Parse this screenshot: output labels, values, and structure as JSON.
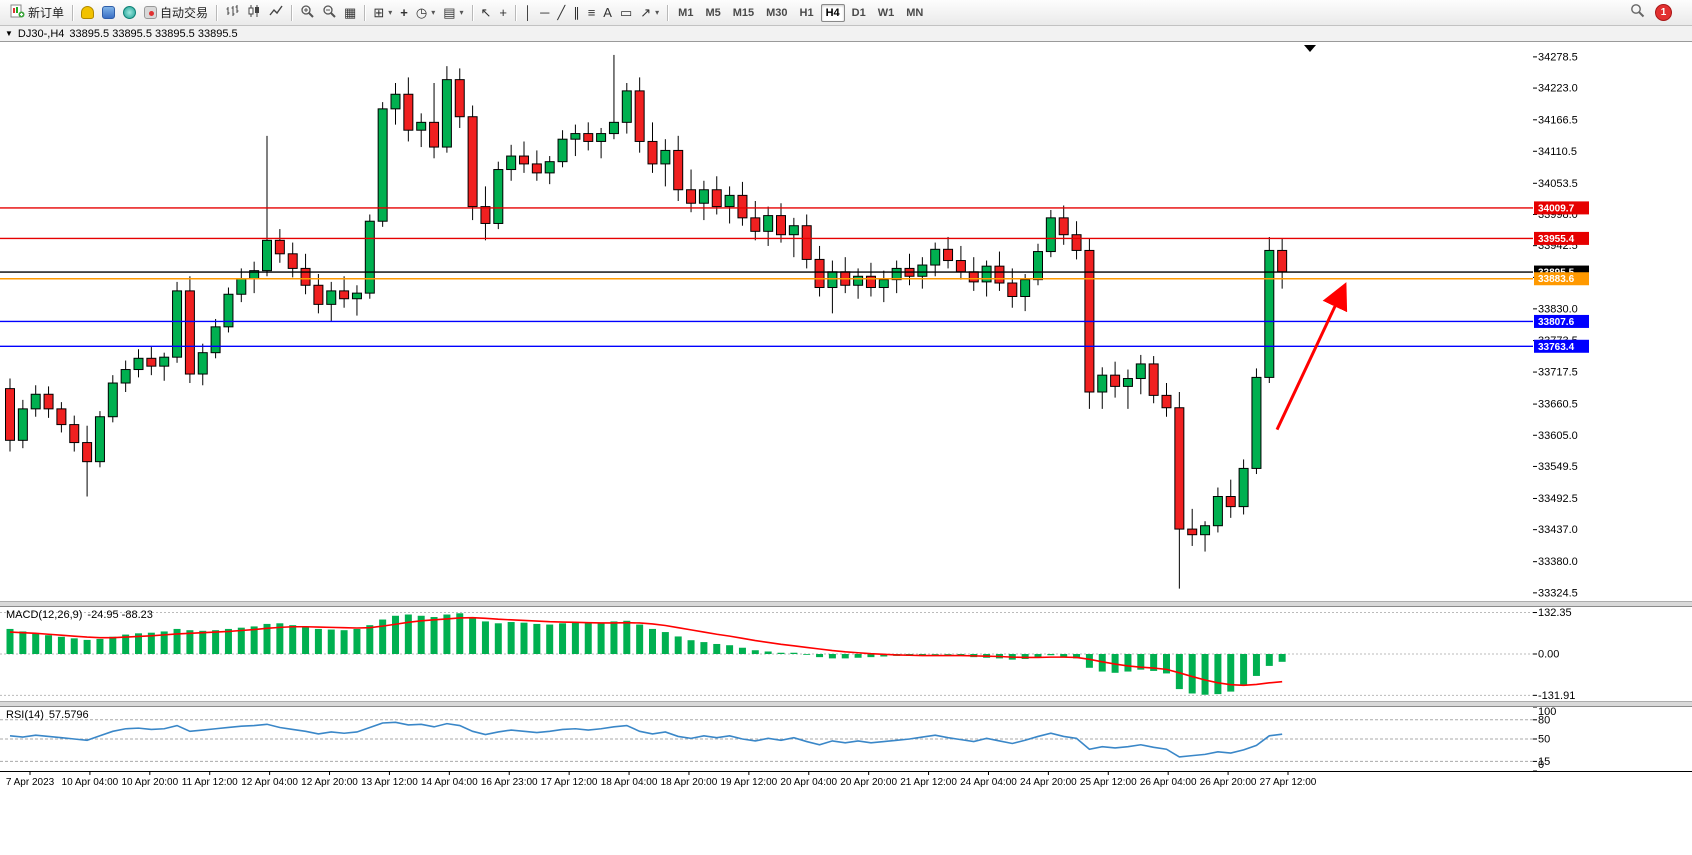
{
  "toolbar": {
    "notification_count": "1",
    "caret_glyph": "▾",
    "timeframes": [
      "M1",
      "M5",
      "M15",
      "M30",
      "H1",
      "H4",
      "D1",
      "W1",
      "MN"
    ],
    "active_timeframe": "H4",
    "items": [
      {
        "type": "button",
        "name": "new-order-button",
        "icon": "new-order-icon",
        "icon_kind": "svg-neworder",
        "label": "新订单"
      },
      {
        "type": "separator"
      },
      {
        "type": "button",
        "name": "metaeditor-button",
        "icon": "metaeditor-icon",
        "icon_kind": "css-hat"
      },
      {
        "type": "button",
        "name": "market-button",
        "icon": "market-icon",
        "icon_kind": "css-blue"
      },
      {
        "type": "button",
        "name": "signals-button",
        "icon": "signals-icon",
        "icon_kind": "css-teal"
      },
      {
        "type": "button",
        "name": "autotrading-button",
        "icon": "autotrading-icon",
        "icon_kind": "css-robot",
        "label": "自动交易"
      },
      {
        "type": "separator"
      },
      {
        "type": "button",
        "name": "bars-chart-button",
        "icon": "bars-chart-icon",
        "icon_kind": "svg-bars"
      },
      {
        "type": "button",
        "name": "candles-chart-button",
        "icon": "candlestick-chart-icon",
        "icon_kind": "svg-candles"
      },
      {
        "type": "button",
        "name": "line-chart-button",
        "icon": "line-chart-icon",
        "icon_kind": "svg-line"
      },
      {
        "type": "separator"
      },
      {
        "type": "button",
        "name": "zoom-in-button",
        "icon": "zoom-in-icon",
        "icon_kind": "svg-zoomin"
      },
      {
        "type": "button",
        "name": "zoom-out-button",
        "icon": "zoom-out-icon",
        "icon_kind": "svg-zoomout"
      },
      {
        "type": "button",
        "name": "tile-windows-button",
        "icon": "tile-windows-icon",
        "icon_kind": "glyph",
        "glyph": "▦"
      },
      {
        "type": "separator"
      },
      {
        "type": "button",
        "name": "new-chart-button",
        "icon": "new-chart-icon",
        "icon_kind": "glyph",
        "glyph": "⊞",
        "caret": true
      },
      {
        "type": "button",
        "name": "indicators-button",
        "icon": "add-indicator-icon",
        "icon_kind": "glyph-green",
        "glyph": "+"
      },
      {
        "type": "button",
        "name": "periods-button",
        "icon": "clock-icon",
        "icon_kind": "glyph",
        "glyph": "◷",
        "caret": true
      },
      {
        "type": "button",
        "name": "templates-button",
        "icon": "template-icon",
        "icon_kind": "glyph",
        "glyph": "▤",
        "caret": true
      },
      {
        "type": "separator"
      },
      {
        "type": "button",
        "name": "cursor-button",
        "icon": "cursor-icon",
        "icon_kind": "glyph",
        "glyph": "↖"
      },
      {
        "type": "button",
        "name": "crosshair-button",
        "icon": "crosshair-icon",
        "icon_kind": "glyph",
        "glyph": "+"
      },
      {
        "type": "separator"
      },
      {
        "type": "button",
        "name": "vline-button",
        "icon": "vertical-line-icon",
        "icon_kind": "glyph",
        "glyph": "│"
      },
      {
        "type": "button",
        "name": "hline-button",
        "icon": "horizontal-line-icon",
        "icon_kind": "glyph",
        "glyph": "─"
      },
      {
        "type": "button",
        "name": "trendline-button",
        "icon": "trendline-icon",
        "icon_kind": "glyph",
        "glyph": "╱"
      },
      {
        "type": "button",
        "name": "channel-button",
        "icon": "channel-icon",
        "icon_kind": "glyph",
        "glyph": "∥"
      },
      {
        "type": "button",
        "name": "fibonacci-button",
        "icon": "fibonacci-icon",
        "icon_kind": "glyph",
        "glyph": "≡"
      },
      {
        "type": "button",
        "name": "text-button",
        "icon": "text-icon",
        "icon_kind": "glyph",
        "glyph": "A"
      },
      {
        "type": "button",
        "name": "label-button",
        "icon": "text-label-icon",
        "icon_kind": "glyph",
        "glyph": "▭"
      },
      {
        "type": "button",
        "name": "arrows-button",
        "icon": "arrows-icon",
        "icon_kind": "glyph",
        "glyph": "↗",
        "caret": true
      },
      {
        "type": "separator"
      }
    ]
  },
  "chart_header": {
    "collapse_glyph": "▼",
    "symbol": "DJ30-,H4",
    "ohlc_text": "33895.5 33895.5 33895.5 33895.5"
  },
  "chart_data": {
    "type": "candlestick",
    "symbol": "DJ30-",
    "timeframe": "H4",
    "current_price": 33895.5,
    "price_axis": {
      "min": 33310,
      "max": 34305,
      "labels": [
        "34278.5",
        "34223.0",
        "34166.5",
        "34110.5",
        "34053.5",
        "33998.0",
        "33942.5",
        "33886.0",
        "33830.0",
        "33773.5",
        "33717.5",
        "33660.5",
        "33605.0",
        "33549.5",
        "33492.5",
        "33437.0",
        "33380.0",
        "33324.5"
      ]
    },
    "hlines": [
      {
        "price": 34009.7,
        "color": "#e60000",
        "label": "34009.7"
      },
      {
        "price": 33955.4,
        "color": "#e60000",
        "label": "33955.4"
      },
      {
        "price": 33895.5,
        "color": "#000000",
        "label": "33895.5"
      },
      {
        "price": 33883.6,
        "color": "#ff9900",
        "label": "33883.6"
      },
      {
        "price": 33807.6,
        "color": "#0000ff",
        "label": "33807.6"
      },
      {
        "price": 33763.4,
        "color": "#0000ff",
        "label": "33763.4"
      }
    ],
    "arrow_annotation": {
      "from_index": 98.6,
      "from_price": 33615,
      "to_index": 103.8,
      "to_price": 33868,
      "color": "#ff0000"
    },
    "time_labels": [
      "7 Apr 2023",
      "10 Apr 04:00",
      "10 Apr 20:00",
      "11 Apr 12:00",
      "12 Apr 04:00",
      "12 Apr 20:00",
      "13 Apr 12:00",
      "14 Apr 04:00",
      "16 Apr 23:00",
      "17 Apr 12:00",
      "18 Apr 04:00",
      "18 Apr 20:00",
      "19 Apr 12:00",
      "20 Apr 04:00",
      "20 Apr 20:00",
      "21 Apr 12:00",
      "24 Apr 04:00",
      "24 Apr 20:00",
      "25 Apr 12:00",
      "26 Apr 04:00",
      "26 Apr 20:00",
      "27 Apr 12:00"
    ],
    "candles": [
      [
        33688,
        33706,
        33576,
        33596
      ],
      [
        33596,
        33668,
        33582,
        33652
      ],
      [
        33652,
        33694,
        33638,
        33678
      ],
      [
        33678,
        33692,
        33636,
        33652
      ],
      [
        33652,
        33664,
        33610,
        33624
      ],
      [
        33624,
        33640,
        33576,
        33592
      ],
      [
        33592,
        33622,
        33496,
        33558
      ],
      [
        33558,
        33648,
        33548,
        33638
      ],
      [
        33638,
        33712,
        33628,
        33698
      ],
      [
        33698,
        33738,
        33682,
        33722
      ],
      [
        33722,
        33758,
        33708,
        33742
      ],
      [
        33742,
        33762,
        33712,
        33728
      ],
      [
        33728,
        33752,
        33702,
        33744
      ],
      [
        33744,
        33878,
        33734,
        33862
      ],
      [
        33862,
        33888,
        33698,
        33714
      ],
      [
        33714,
        33768,
        33694,
        33752
      ],
      [
        33752,
        33812,
        33742,
        33798
      ],
      [
        33798,
        33868,
        33788,
        33856
      ],
      [
        33856,
        33902,
        33842,
        33884
      ],
      [
        33884,
        33914,
        33858,
        33898
      ],
      [
        33898,
        34138,
        33888,
        33952
      ],
      [
        33952,
        33972,
        33912,
        33928
      ],
      [
        33928,
        33948,
        33886,
        33902
      ],
      [
        33902,
        33928,
        33856,
        33872
      ],
      [
        33872,
        33892,
        33822,
        33838
      ],
      [
        33838,
        33878,
        33808,
        33862
      ],
      [
        33862,
        33888,
        33832,
        33848
      ],
      [
        33848,
        33872,
        33818,
        33858
      ],
      [
        33858,
        33998,
        33848,
        33986
      ],
      [
        33986,
        34198,
        33976,
        34186
      ],
      [
        34186,
        34232,
        34158,
        34212
      ],
      [
        34212,
        34242,
        34128,
        34148
      ],
      [
        34148,
        34178,
        34118,
        34162
      ],
      [
        34162,
        34232,
        34098,
        34118
      ],
      [
        34118,
        34262,
        34108,
        34238
      ],
      [
        34238,
        34258,
        34152,
        34172
      ],
      [
        34172,
        34192,
        33988,
        34012
      ],
      [
        34012,
        34048,
        33952,
        33982
      ],
      [
        33982,
        34092,
        33972,
        34078
      ],
      [
        34078,
        34122,
        34058,
        34102
      ],
      [
        34102,
        34128,
        34072,
        34088
      ],
      [
        34088,
        34112,
        34058,
        34072
      ],
      [
        34072,
        34102,
        34052,
        34092
      ],
      [
        34092,
        34148,
        34082,
        34132
      ],
      [
        34132,
        34158,
        34102,
        34142
      ],
      [
        34142,
        34162,
        34112,
        34128
      ],
      [
        34128,
        34152,
        34098,
        34142
      ],
      [
        34142,
        34282,
        34132,
        34162
      ],
      [
        34162,
        34232,
        34142,
        34218
      ],
      [
        34218,
        34242,
        34108,
        34128
      ],
      [
        34128,
        34162,
        34072,
        34088
      ],
      [
        34088,
        34132,
        34048,
        34112
      ],
      [
        34112,
        34138,
        34022,
        34042
      ],
      [
        34042,
        34078,
        34002,
        34018
      ],
      [
        34018,
        34058,
        33988,
        34042
      ],
      [
        34042,
        34066,
        33998,
        34012
      ],
      [
        34012,
        34048,
        33982,
        34032
      ],
      [
        34032,
        34056,
        33978,
        33992
      ],
      [
        33992,
        34022,
        33952,
        33968
      ],
      [
        33968,
        34012,
        33942,
        33996
      ],
      [
        33996,
        34018,
        33948,
        33962
      ],
      [
        33962,
        33992,
        33922,
        33978
      ],
      [
        33978,
        33998,
        33902,
        33918
      ],
      [
        33918,
        33942,
        33852,
        33868
      ],
      [
        33868,
        33916,
        33822,
        33896
      ],
      [
        33896,
        33922,
        33858,
        33872
      ],
      [
        33872,
        33902,
        33848,
        33888
      ],
      [
        33888,
        33912,
        33852,
        33868
      ],
      [
        33868,
        33898,
        33842,
        33882
      ],
      [
        33882,
        33916,
        33858,
        33902
      ],
      [
        33902,
        33928,
        33872,
        33888
      ],
      [
        33888,
        33922,
        33866,
        33908
      ],
      [
        33908,
        33948,
        33888,
        33936
      ],
      [
        33936,
        33958,
        33902,
        33916
      ],
      [
        33916,
        33942,
        33882,
        33896
      ],
      [
        33896,
        33922,
        33862,
        33878
      ],
      [
        33878,
        33916,
        33852,
        33906
      ],
      [
        33906,
        33932,
        33862,
        33876
      ],
      [
        33876,
        33902,
        33832,
        33852
      ],
      [
        33852,
        33892,
        33826,
        33882
      ],
      [
        33882,
        33946,
        33872,
        33932
      ],
      [
        33932,
        34006,
        33922,
        33992
      ],
      [
        33992,
        34014,
        33944,
        33962
      ],
      [
        33962,
        33986,
        33918,
        33934
      ],
      [
        33934,
        33956,
        33652,
        33682
      ],
      [
        33682,
        33726,
        33652,
        33712
      ],
      [
        33712,
        33736,
        33672,
        33692
      ],
      [
        33692,
        33722,
        33652,
        33706
      ],
      [
        33706,
        33748,
        33678,
        33732
      ],
      [
        33732,
        33746,
        33662,
        33676
      ],
      [
        33676,
        33698,
        33638,
        33654
      ],
      [
        33654,
        33682,
        33332,
        33438
      ],
      [
        33438,
        33474,
        33408,
        33428
      ],
      [
        33428,
        33452,
        33398,
        33444
      ],
      [
        33444,
        33512,
        33432,
        33496
      ],
      [
        33496,
        33526,
        33458,
        33478
      ],
      [
        33478,
        33562,
        33464,
        33546
      ],
      [
        33546,
        33724,
        33536,
        33708
      ],
      [
        33708,
        33958,
        33698,
        33934
      ],
      [
        33934,
        33956,
        33866,
        33896
      ]
    ],
    "macd": {
      "title": "MACD(12,26,9)",
      "values_text": "-24.95 -88.23",
      "scale_labels": [
        "132.35",
        "0.00",
        "-131.91"
      ],
      "range": [
        -150,
        150
      ],
      "histogram": [
        80,
        72,
        66,
        60,
        55,
        50,
        45,
        48,
        55,
        62,
        66,
        68,
        72,
        80,
        76,
        74,
        76,
        80,
        84,
        88,
        96,
        98,
        92,
        86,
        80,
        78,
        76,
        80,
        92,
        110,
        122,
        126,
        122,
        118,
        126,
        130,
        118,
        104,
        98,
        102,
        100,
        96,
        94,
        98,
        102,
        100,
        98,
        104,
        106,
        94,
        80,
        70,
        56,
        44,
        38,
        32,
        28,
        20,
        12,
        8,
        4,
        4,
        -2,
        -10,
        -14,
        -14,
        -12,
        -10,
        -8,
        -6,
        -6,
        -4,
        0,
        -2,
        -6,
        -10,
        -12,
        -14,
        -18,
        -16,
        -10,
        -4,
        -8,
        -14,
        -44,
        -56,
        -60,
        -56,
        -50,
        -54,
        -62,
        -112,
        -126,
        -130,
        -128,
        -120,
        -100,
        -70,
        -38,
        -24.95
      ],
      "signal": [
        70,
        68,
        66,
        63,
        60,
        57,
        54,
        52,
        52,
        54,
        56,
        58,
        61,
        64,
        66,
        68,
        70,
        72,
        75,
        78,
        82,
        85,
        87,
        87,
        86,
        85,
        84,
        83,
        84,
        89,
        95,
        101,
        106,
        109,
        112,
        115,
        116,
        114,
        111,
        109,
        107,
        105,
        103,
        102,
        101,
        100,
        99,
        99,
        100,
        99,
        96,
        91,
        84,
        77,
        70,
        63,
        57,
        50,
        43,
        37,
        31,
        26,
        21,
        16,
        11,
        7,
        4,
        1,
        -1,
        -3,
        -4,
        -5,
        -5,
        -5,
        -5,
        -6,
        -7,
        -8,
        -10,
        -11,
        -11,
        -10,
        -10,
        -11,
        -17,
        -25,
        -32,
        -38,
        -42,
        -45,
        -49,
        -60,
        -72,
        -83,
        -92,
        -98,
        -100,
        -97,
        -92,
        -88.23
      ]
    },
    "rsi": {
      "title": "RSI(14)",
      "value_text": "57.5796",
      "scale_labels": [
        "100",
        "80",
        "50",
        "15",
        "0"
      ],
      "levels": [
        80,
        50,
        15
      ],
      "range": [
        0,
        100
      ],
      "values": [
        55,
        53,
        56,
        54,
        52,
        50,
        48,
        55,
        62,
        66,
        67,
        65,
        66,
        71,
        62,
        64,
        66,
        68,
        70,
        71,
        73,
        68,
        65,
        62,
        58,
        61,
        59,
        61,
        68,
        75,
        76,
        72,
        73,
        69,
        74,
        71,
        62,
        57,
        61,
        64,
        62,
        60,
        62,
        65,
        66,
        64,
        66,
        69,
        71,
        62,
        58,
        61,
        54,
        51,
        55,
        52,
        55,
        50,
        47,
        51,
        48,
        52,
        46,
        41,
        47,
        44,
        47,
        44,
        46,
        48,
        50,
        53,
        56,
        52,
        49,
        46,
        51,
        47,
        43,
        48,
        54,
        59,
        54,
        51,
        34,
        38,
        36,
        38,
        41,
        37,
        34,
        22,
        24,
        26,
        30,
        28,
        33,
        40,
        55,
        57.58
      ]
    }
  },
  "colors": {
    "bull": "#00b050",
    "bear": "#f02020",
    "candle_outline": "#000000",
    "macd_histogram": "#00b050",
    "macd_signal": "#ff0000",
    "rsi_line": "#3a87c8",
    "axis_text": "#000000"
  }
}
